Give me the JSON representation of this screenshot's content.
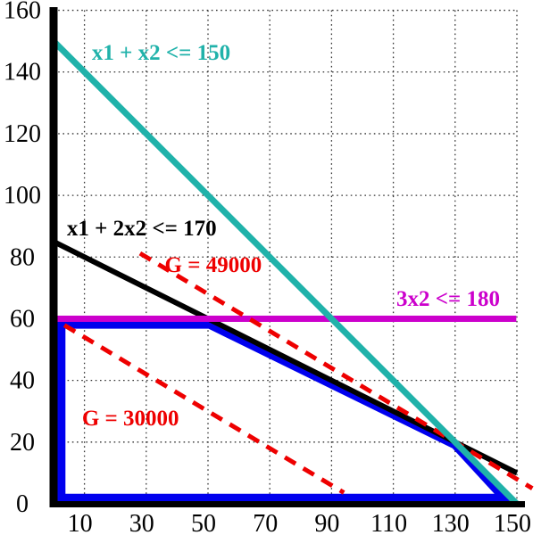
{
  "figure": {
    "background": "#ffffff",
    "axis_color": "#000000",
    "grid_color": "#333333",
    "tick_color": "#000000"
  },
  "chart_data": {
    "type": "line",
    "title": "",
    "xlabel": "",
    "ylabel": "",
    "xlim": [
      0,
      150
    ],
    "ylim": [
      0,
      160
    ],
    "grid": true,
    "legend_position": "none",
    "xticks": [
      10,
      30,
      50,
      70,
      90,
      110,
      130,
      150
    ],
    "yticks": [
      0,
      20,
      40,
      60,
      80,
      100,
      120,
      140,
      160
    ],
    "series": [
      {
        "name": "constraint-x1-plus-2x2",
        "label": "x1 + 2x2 <= 170",
        "equation": "x1 + 2x2 = 170",
        "color": "#000000",
        "dash": "solid",
        "width": 6,
        "points": [
          [
            0,
            85
          ],
          [
            150,
            10
          ]
        ],
        "label_anchor": [
          4.3,
          87.0
        ]
      },
      {
        "name": "constraint-3x2",
        "label": "3x2 <= 180",
        "equation": "x2 = 60",
        "color": "#CC00CC",
        "dash": "solid",
        "width": 7,
        "points": [
          [
            0,
            60
          ],
          [
            149.8,
            60
          ]
        ],
        "label_anchor": [
          111,
          64.2
        ]
      },
      {
        "name": "objective-G-49000",
        "label": "G = 49000",
        "equation": "300x1 + 500x2 = 49000",
        "color": "#EE0000",
        "dash": "dashed",
        "width": 5,
        "points": [
          [
            28,
            81.2
          ],
          [
            155,
            5
          ]
        ],
        "label_anchor": [
          36,
          75.2
        ]
      },
      {
        "name": "objective-G-30000",
        "label": "G = 30000",
        "equation": "300x1 + 500x2 = 30000",
        "color": "#EE0000",
        "dash": "dashed",
        "width": 5,
        "points": [
          [
            3.5,
            57.9
          ],
          [
            94,
            3.6
          ]
        ],
        "label_anchor": [
          9.2,
          25.4
        ]
      },
      {
        "name": "constraint-x1-plus-x2",
        "label": "x1 + x2 <= 150",
        "equation": "x1 + x2 = 150",
        "color": "#20B2AA",
        "dash": "solid",
        "width": 7,
        "points": [
          [
            0,
            150
          ],
          [
            150,
            0
          ]
        ],
        "label_anchor": [
          12.4,
          144.0
        ]
      }
    ],
    "feasible_region": {
      "name": "feasible-region",
      "color": "#0000EE",
      "width": 10,
      "closed": true,
      "vertices": [
        [
          0,
          0
        ],
        [
          0,
          60
        ],
        [
          50,
          60
        ],
        [
          130,
          20
        ],
        [
          150,
          0
        ]
      ],
      "drawn_points": [
        [
          2.4,
          1.8
        ],
        [
          2.4,
          58.2
        ],
        [
          50.5,
          58.2
        ],
        [
          130,
          19.2
        ],
        [
          146,
          1.8
        ]
      ]
    }
  }
}
